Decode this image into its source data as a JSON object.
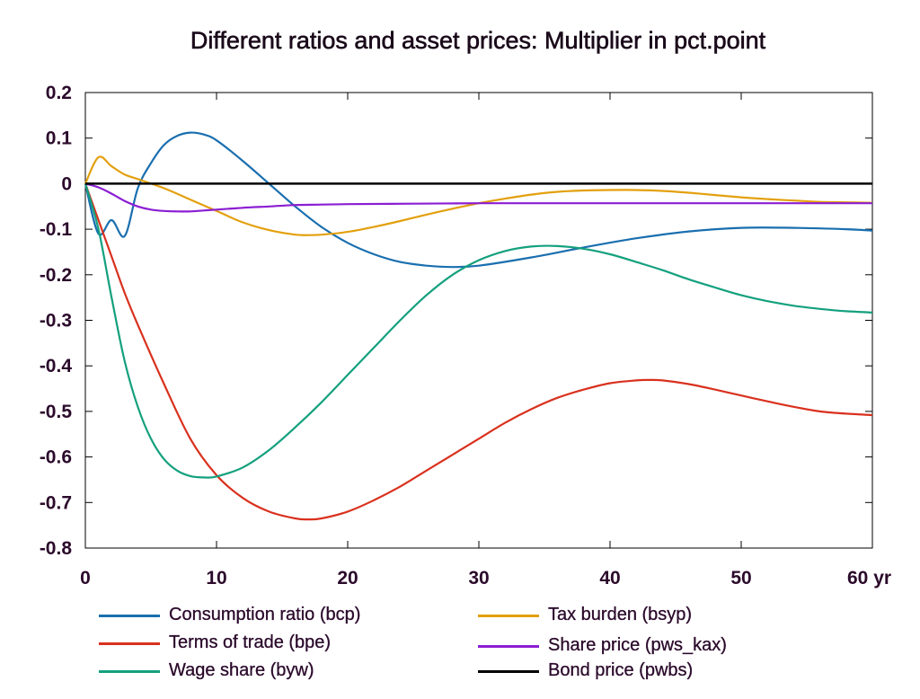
{
  "chart_data": {
    "type": "line",
    "title": "Different ratios and asset prices: Multiplier in pct.point",
    "xlim": [
      0,
      60
    ],
    "ylim": [
      -0.8,
      0.2
    ],
    "x_ticks": [
      0,
      10,
      20,
      30,
      40,
      50,
      60
    ],
    "x_tick_labels": [
      "0",
      "10",
      "20",
      "30",
      "40",
      "50",
      "60 yr"
    ],
    "y_ticks": [
      0.2,
      0.1,
      0,
      -0.1,
      -0.2,
      -0.3,
      -0.4,
      -0.5,
      -0.6,
      -0.7,
      -0.8
    ],
    "y_tick_labels": [
      "0.2",
      "0.1",
      "0",
      "-0.1",
      "-0.2",
      "-0.3",
      "-0.4",
      "-0.5",
      "-0.6",
      "-0.7",
      "-0.8"
    ],
    "grid": false,
    "legend_position": "bottom",
    "series": [
      {
        "name": "Consumption ratio (bcp)",
        "color": "#1a6faf",
        "x": [
          0,
          1,
          2,
          3,
          4,
          5,
          6,
          7,
          8,
          9,
          10,
          12,
          14,
          16,
          18,
          20,
          22,
          24,
          26,
          28,
          30,
          34,
          38,
          42,
          46,
          50,
          54,
          58,
          60
        ],
        "y": [
          0,
          -0.11,
          -0.08,
          -0.115,
          -0.01,
          0.045,
          0.085,
          0.105,
          0.112,
          0.108,
          0.095,
          0.05,
          0.0,
          -0.05,
          -0.095,
          -0.13,
          -0.155,
          -0.172,
          -0.18,
          -0.183,
          -0.18,
          -0.162,
          -0.14,
          -0.12,
          -0.105,
          -0.097,
          -0.097,
          -0.1,
          -0.103
        ]
      },
      {
        "name": "Terms of trade (bpe)",
        "color": "#d9311e",
        "x": [
          0,
          1,
          2,
          3,
          4,
          6,
          8,
          10,
          12,
          14,
          16,
          17,
          18,
          20,
          22,
          24,
          26,
          28,
          30,
          32,
          34,
          36,
          38,
          40,
          42,
          43,
          44,
          46,
          48,
          50,
          52,
          54,
          56,
          58,
          60
        ],
        "y": [
          0,
          -0.08,
          -0.16,
          -0.24,
          -0.31,
          -0.44,
          -0.56,
          -0.64,
          -0.69,
          -0.72,
          -0.735,
          -0.737,
          -0.735,
          -0.72,
          -0.695,
          -0.665,
          -0.63,
          -0.595,
          -0.56,
          -0.525,
          -0.495,
          -0.47,
          -0.452,
          -0.438,
          -0.432,
          -0.431,
          -0.432,
          -0.44,
          -0.452,
          -0.465,
          -0.478,
          -0.49,
          -0.5,
          -0.505,
          -0.508
        ]
      },
      {
        "name": "Wage share (byw)",
        "color": "#14a07e",
        "x": [
          0,
          1,
          2,
          3,
          4,
          5,
          6,
          7,
          8,
          9,
          10,
          12,
          14,
          16,
          18,
          20,
          22,
          24,
          26,
          28,
          30,
          32,
          34,
          36,
          38,
          40,
          42,
          44,
          46,
          48,
          50,
          52,
          54,
          56,
          58,
          60
        ],
        "y": [
          0,
          -0.1,
          -0.25,
          -0.39,
          -0.49,
          -0.56,
          -0.605,
          -0.63,
          -0.642,
          -0.645,
          -0.643,
          -0.623,
          -0.585,
          -0.535,
          -0.48,
          -0.42,
          -0.36,
          -0.3,
          -0.245,
          -0.2,
          -0.168,
          -0.148,
          -0.138,
          -0.137,
          -0.143,
          -0.155,
          -0.172,
          -0.19,
          -0.21,
          -0.228,
          -0.245,
          -0.258,
          -0.268,
          -0.275,
          -0.28,
          -0.283
        ]
      },
      {
        "name": "Tax burden (bsyp)",
        "color": "#e3a00e",
        "x": [
          0,
          1,
          2,
          3,
          4,
          6,
          8,
          10,
          12,
          14,
          16,
          17,
          18,
          20,
          22,
          24,
          26,
          28,
          30,
          32,
          34,
          36,
          38,
          40,
          42,
          44,
          46,
          48,
          50,
          52,
          54,
          56,
          58,
          60
        ],
        "y": [
          0,
          0.058,
          0.038,
          0.02,
          0.01,
          -0.01,
          -0.035,
          -0.06,
          -0.085,
          -0.102,
          -0.112,
          -0.113,
          -0.112,
          -0.106,
          -0.095,
          -0.082,
          -0.068,
          -0.055,
          -0.043,
          -0.033,
          -0.024,
          -0.018,
          -0.015,
          -0.014,
          -0.014,
          -0.016,
          -0.02,
          -0.025,
          -0.03,
          -0.034,
          -0.037,
          -0.04,
          -0.041,
          -0.042
        ]
      },
      {
        "name": "Share price (pws_kax)",
        "color": "#8b1ed3",
        "x": [
          0,
          1,
          2,
          3,
          4,
          5,
          6,
          7,
          8,
          9,
          10,
          12,
          14,
          16,
          18,
          20,
          25,
          30,
          35,
          40,
          45,
          50,
          55,
          60
        ],
        "y": [
          0,
          -0.008,
          -0.022,
          -0.038,
          -0.05,
          -0.057,
          -0.06,
          -0.061,
          -0.061,
          -0.059,
          -0.057,
          -0.053,
          -0.05,
          -0.047,
          -0.046,
          -0.045,
          -0.044,
          -0.043,
          -0.043,
          -0.043,
          -0.043,
          -0.043,
          -0.043,
          -0.043
        ]
      },
      {
        "name": "Bond price (pwbs)",
        "color": "#000000",
        "x": [
          0,
          60
        ],
        "y": [
          0,
          0
        ]
      }
    ]
  }
}
